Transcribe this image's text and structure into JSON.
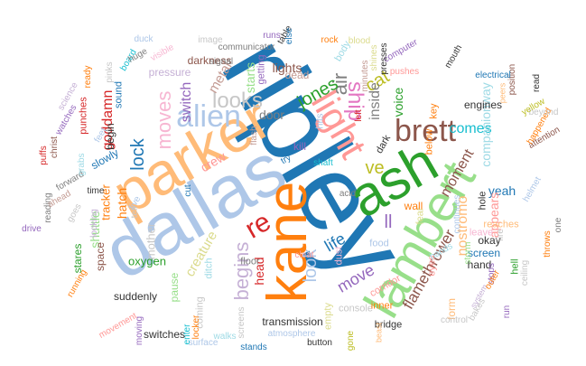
{
  "words": [
    {
      "text": "ripley",
      "color": "#1f77b4"
    },
    {
      "text": "dallas",
      "color": "#aec7e8"
    },
    {
      "text": "parker",
      "color": "#ffbb78"
    },
    {
      "text": "kane",
      "color": "#ff7f0e"
    },
    {
      "text": "ash",
      "color": "#2ca02c"
    },
    {
      "text": "lambert",
      "color": "#98df8a"
    },
    {
      "text": "light",
      "color": "#ff9896"
    },
    {
      "text": "brett",
      "color": "#8c564b"
    },
    {
      "text": "alien",
      "color": "#aec7e8"
    },
    {
      "text": "re",
      "color": "#d62728"
    },
    {
      "text": "ship",
      "color": "#e377c2"
    },
    {
      "text": "looks",
      "color": "#c7c7c7"
    },
    {
      "text": "moves",
      "color": "#f7b6d2"
    },
    {
      "text": "air",
      "color": "#7f7f7f"
    },
    {
      "text": "lock",
      "color": "#1f77b4"
    },
    {
      "text": "ll",
      "color": "#9467bd"
    },
    {
      "text": "cat",
      "color": "#bcbd22"
    },
    {
      "text": "ve",
      "color": "#bcbd22"
    },
    {
      "text": "jones",
      "color": "#2ca02c"
    },
    {
      "text": "begins",
      "color": "#c5b0d5"
    },
    {
      "text": "look",
      "color": "#aec7e8"
    },
    {
      "text": "move",
      "color": "#9467bd"
    },
    {
      "text": "life",
      "color": "#1f77b4"
    },
    {
      "text": "flamethrower",
      "color": "#8c564b"
    },
    {
      "text": "nostromo",
      "color": "#ffbb78"
    },
    {
      "text": "moment",
      "color": "#8c564b"
    },
    {
      "text": "comes",
      "color": "#17becf"
    },
    {
      "text": "companionway",
      "color": "#9edae5"
    },
    {
      "text": "inside",
      "color": "#7f7f7f"
    },
    {
      "text": "voice",
      "color": "#2ca02c"
    },
    {
      "text": "yeah",
      "color": "#1f77b4"
    },
    {
      "text": "appears",
      "color": "#ff9896"
    },
    {
      "text": "hatch",
      "color": "#ff7f0e"
    },
    {
      "text": "goddamn",
      "color": "#d62728"
    },
    {
      "text": "switch",
      "color": "#9467bd"
    },
    {
      "text": "metal",
      "color": "#c49c94"
    },
    {
      "text": "starts",
      "color": "#98df8a"
    },
    {
      "text": "lights",
      "color": "#8c564b"
    },
    {
      "text": "door",
      "color": "#7f7f7f"
    },
    {
      "text": "crew",
      "color": "#ff9896"
    },
    {
      "text": "creature",
      "color": "#dbdb8d"
    },
    {
      "text": "head",
      "color": "#d62728"
    },
    {
      "text": "transmission",
      "color": "#333333"
    },
    {
      "text": "mother",
      "color": "#c7c7c7"
    },
    {
      "text": "tracker",
      "color": "#ff7f0e"
    },
    {
      "text": "shuttle",
      "color": "#98df8a"
    },
    {
      "text": "oxygen",
      "color": "#2ca02c"
    },
    {
      "text": "suddenly",
      "color": "#333333"
    },
    {
      "text": "pause",
      "color": "#98df8a"
    },
    {
      "text": "screen",
      "color": "#1f77b4"
    },
    {
      "text": "engines",
      "color": "#333333"
    },
    {
      "text": "wall",
      "color": "#ff7f0e"
    },
    {
      "text": "hand",
      "color": "#333333"
    },
    {
      "text": "okay",
      "color": "#333333"
    },
    {
      "text": "form",
      "color": "#ffbb78"
    },
    {
      "text": "console",
      "color": "#c7c7c7"
    },
    {
      "text": "corridor",
      "color": "#ff9896"
    },
    {
      "text": "bridge",
      "color": "#333333"
    },
    {
      "text": "switches",
      "color": "#333333"
    },
    {
      "text": "coming",
      "color": "#c7c7c7"
    },
    {
      "text": "floor",
      "color": "#7f7f7f"
    },
    {
      "text": "space",
      "color": "#8c564b"
    },
    {
      "text": "begin",
      "color": "#333333"
    },
    {
      "text": "slowly",
      "color": "#1f77b4"
    },
    {
      "text": "dead",
      "color": "#c49c94"
    },
    {
      "text": "body",
      "color": "#9edae5"
    },
    {
      "text": "pressure",
      "color": "#c5b0d5"
    },
    {
      "text": "darkness",
      "color": "#8c564b"
    },
    {
      "text": "getting",
      "color": "#9467bd"
    },
    {
      "text": "hits",
      "color": "#aec7e8"
    },
    {
      "text": "shaft",
      "color": "#17becf"
    },
    {
      "text": "kill",
      "color": "#9467bd"
    },
    {
      "text": "dark",
      "color": "#333333"
    },
    {
      "text": "acid",
      "color": "#7f7f7f"
    },
    {
      "text": "dust",
      "color": "#f7b6d2"
    },
    {
      "text": "food",
      "color": "#aec7e8"
    },
    {
      "text": "inner",
      "color": "#ff7f0e"
    },
    {
      "text": "empty",
      "color": "#dbdb8d"
    },
    {
      "text": "screens",
      "color": "#c7c7c7"
    },
    {
      "text": "atmosphere",
      "color": "#aec7e8"
    },
    {
      "text": "stands",
      "color": "#1f77b4"
    },
    {
      "text": "button",
      "color": "#333333"
    },
    {
      "text": "gone",
      "color": "#bcbd22"
    },
    {
      "text": "beast",
      "color": "#ffbb78"
    },
    {
      "text": "locker",
      "color": "#ff7f0e"
    },
    {
      "text": "walks",
      "color": "#9edae5"
    },
    {
      "text": "surface",
      "color": "#aec7e8"
    },
    {
      "text": "enter",
      "color": "#17becf"
    },
    {
      "text": "moving",
      "color": "#9467bd"
    },
    {
      "text": "movement",
      "color": "#ff9896"
    },
    {
      "text": "running",
      "color": "#ff7f0e"
    },
    {
      "text": "stares",
      "color": "#2ca02c"
    },
    {
      "text": "looking",
      "color": "#c5b0d5"
    },
    {
      "text": "goes",
      "color": "#c7c7c7"
    },
    {
      "text": "forward",
      "color": "#7f7f7f"
    },
    {
      "text": "drive",
      "color": "#9467bd"
    },
    {
      "text": "reading",
      "color": "#7f7f7f"
    },
    {
      "text": "ahead",
      "color": "#c49c94"
    },
    {
      "text": "puffs",
      "color": "#d62728"
    },
    {
      "text": "christ",
      "color": "#8c564b"
    },
    {
      "text": "watches",
      "color": "#9467bd"
    },
    {
      "text": "science",
      "color": "#c5b0d5"
    },
    {
      "text": "punches",
      "color": "#d62728"
    },
    {
      "text": "ready",
      "color": "#ff7f0e"
    },
    {
      "text": "pinks",
      "color": "#c7c7c7"
    },
    {
      "text": "sound",
      "color": "#1f77b4"
    },
    {
      "text": "board",
      "color": "#17becf"
    },
    {
      "text": "huge",
      "color": "#7f7f7f"
    },
    {
      "text": "duck",
      "color": "#aec7e8"
    },
    {
      "text": "visible",
      "color": "#f7b6d2"
    },
    {
      "text": "image",
      "color": "#c7c7c7"
    },
    {
      "text": "signal",
      "color": "#7f7f7f"
    },
    {
      "text": "communicator",
      "color": "#7f7f7f"
    },
    {
      "text": "runs",
      "color": "#9467bd"
    },
    {
      "text": "table",
      "color": "#333333"
    },
    {
      "text": "else",
      "color": "#1f77b4"
    },
    {
      "text": "rock",
      "color": "#ff7f0e"
    },
    {
      "text": "blood",
      "color": "#dbdb8d"
    },
    {
      "text": "computer",
      "color": "#9467bd"
    },
    {
      "text": "presses",
      "color": "#333333"
    },
    {
      "text": "pushes",
      "color": "#ff9896"
    },
    {
      "text": "minutes",
      "color": "#c49c94"
    },
    {
      "text": "shines",
      "color": "#dbdb8d"
    },
    {
      "text": "left",
      "color": "#d62728"
    },
    {
      "text": "flash",
      "color": "#c49c94"
    },
    {
      "text": "try",
      "color": "#1f77b4"
    },
    {
      "text": "cut",
      "color": "#1f77b4"
    },
    {
      "text": "cleat",
      "color": "#ff9896"
    },
    {
      "text": "grabs",
      "color": "#9edae5"
    },
    {
      "text": "tell",
      "color": "#c7c7c7"
    },
    {
      "text": "feet",
      "color": "#aec7e8"
    },
    {
      "text": "time",
      "color": "#333333"
    },
    {
      "text": "five",
      "color": "#aec7e8"
    },
    {
      "text": "ditch",
      "color": "#9edae5"
    },
    {
      "text": "fear",
      "color": "#dbdb8d"
    },
    {
      "text": "key",
      "color": "#ff7f0e"
    },
    {
      "text": "below",
      "color": "#ff7f0e"
    },
    {
      "text": "continues",
      "color": "#aec7e8"
    },
    {
      "text": "hole",
      "color": "#333333"
    },
    {
      "text": "reaches",
      "color": "#ffbb78"
    },
    {
      "text": "storm",
      "color": "#98df8a"
    },
    {
      "text": "stops",
      "color": "#9467bd"
    },
    {
      "text": "eyes",
      "color": "#ff9896"
    },
    {
      "text": "hands",
      "color": "#9edae5"
    },
    {
      "text": "leave",
      "color": "#f7b6d2"
    },
    {
      "text": "fire",
      "color": "#c7c7c7"
    },
    {
      "text": "hell",
      "color": "#2ca02c"
    },
    {
      "text": "run",
      "color": "#9467bd"
    },
    {
      "text": "control",
      "color": "#c7c7c7"
    },
    {
      "text": "bakes",
      "color": "#c7c7c7"
    },
    {
      "text": "system",
      "color": "#c5b0d5"
    },
    {
      "text": "outer",
      "color": "#ff7f0e"
    },
    {
      "text": "ceiling",
      "color": "#c7c7c7"
    },
    {
      "text": "throws",
      "color": "#ff7f0e"
    },
    {
      "text": "helmet",
      "color": "#aec7e8"
    },
    {
      "text": "one",
      "color": "#7f7f7f"
    },
    {
      "text": "attention",
      "color": "#8c564b"
    },
    {
      "text": "happened",
      "color": "#ff7f0e"
    },
    {
      "text": "beyond",
      "color": "#c7c7c7"
    },
    {
      "text": "yellow",
      "color": "#bcbd22"
    },
    {
      "text": "read",
      "color": "#333333"
    },
    {
      "text": "position",
      "color": "#8c564b"
    },
    {
      "text": "electrical",
      "color": "#1f77b4"
    },
    {
      "text": "mouth",
      "color": "#333333"
    },
    {
      "text": "peers",
      "color": "#ffbb78"
    },
    {
      "text": "box",
      "color": "#c7c7c7"
    }
  ]
}
